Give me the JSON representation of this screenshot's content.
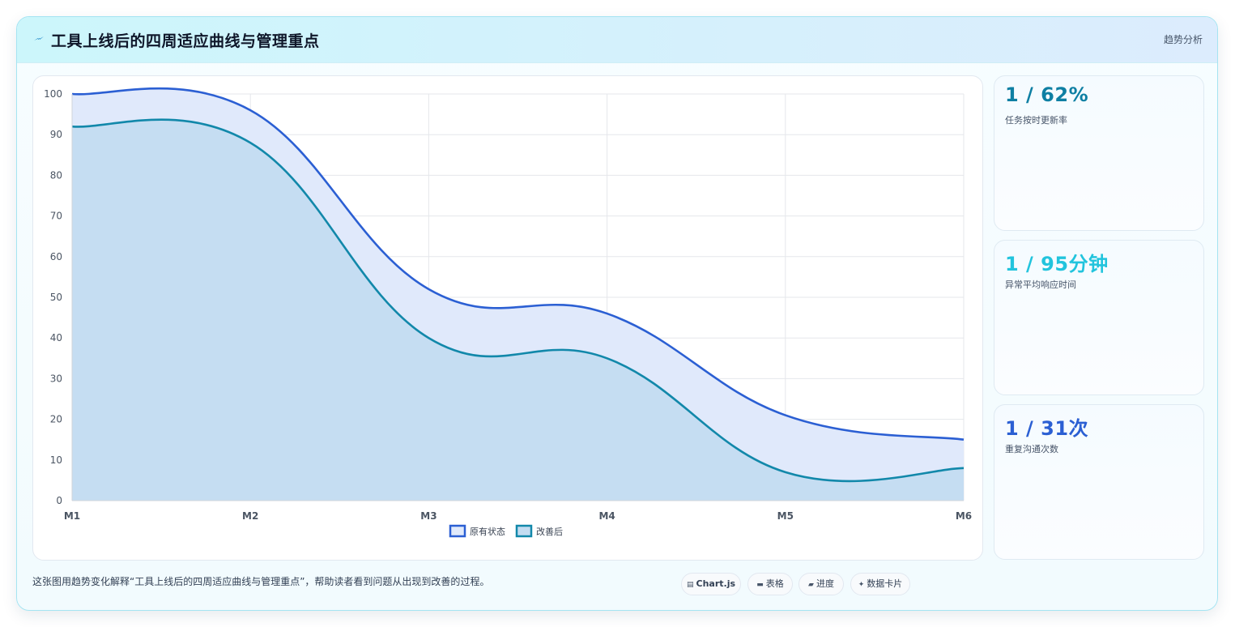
{
  "header": {
    "title": "工具上线后的四周适应曲线与管理重点",
    "tag": "趋势分析",
    "icon": "lightning-icon"
  },
  "stats": [
    {
      "value": "1 / 62%",
      "label": "任务按时更新率",
      "color": "#0e7fa3"
    },
    {
      "value": "1 / 95分钟",
      "label": "异常平均响应时间",
      "color": "#22c4dd"
    },
    {
      "value": "1 / 31次",
      "label": "重复沟通次数",
      "color": "#2b5fd3"
    }
  ],
  "footer": {
    "description": "这张图用趋势变化解释“工具上线后的四周适应曲线与管理重点”，帮助读者看到问题从出现到改善的过程。",
    "chips": [
      {
        "icon": "chart-icon",
        "glyph": "▤",
        "label": "Chart.js",
        "bold": true
      },
      {
        "icon": "table-icon",
        "glyph": "▬",
        "label": "表格",
        "bold": false
      },
      {
        "icon": "progress-icon",
        "glyph": "▰",
        "label": "进度",
        "bold": false
      },
      {
        "icon": "sparkle-icon",
        "glyph": "✦",
        "label": "数据卡片",
        "bold": false
      }
    ]
  },
  "chart_data": {
    "type": "area",
    "categories": [
      "M1",
      "M2",
      "M3",
      "M4",
      "M5",
      "M6"
    ],
    "series": [
      {
        "name": "原有状态",
        "values": [
          100,
          96,
          52,
          46,
          21,
          15
        ],
        "color": "#2b5fd3",
        "fill": "#e0e9fb"
      },
      {
        "name": "改善后",
        "values": [
          92,
          88,
          40,
          35,
          7,
          8
        ],
        "color": "#1288aa",
        "fill": "#c3dcf1"
      }
    ],
    "ylim": [
      0,
      100
    ],
    "yticks": [
      "0",
      "10",
      "20",
      "30",
      "40",
      "50",
      "60",
      "70",
      "80",
      "90",
      "100"
    ],
    "grid": true,
    "legend": "bottom",
    "title": "",
    "xlabel": "",
    "ylabel": ""
  }
}
